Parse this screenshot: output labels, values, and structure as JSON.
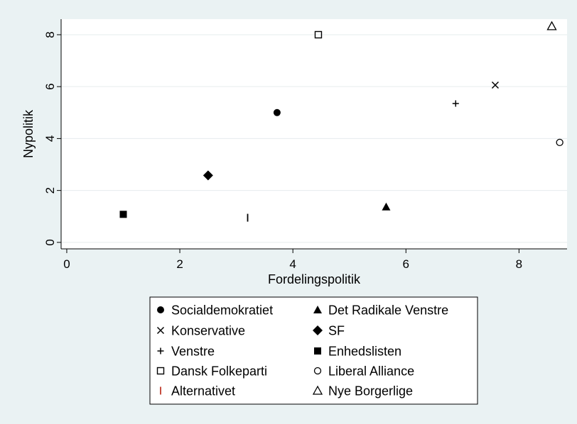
{
  "chart_data": {
    "type": "scatter",
    "xlabel": "Fordelingspolitik",
    "ylabel": "Nypolitik",
    "xlim": [
      -0.1,
      8.85
    ],
    "ylim": [
      -0.25,
      8.6
    ],
    "x_ticks": [
      0,
      2,
      4,
      6,
      8
    ],
    "y_ticks": [
      0,
      2,
      4,
      6,
      8
    ],
    "grid": "horizontal",
    "legend_position": "bottom-center",
    "background_color": "#eaf2f3",
    "plot_background_color": "#ffffff",
    "series": [
      {
        "name": "Socialdemokratiet",
        "marker": "filled-circle",
        "color": "#000000",
        "x": 3.72,
        "y": 5.0
      },
      {
        "name": "Det Radikale Venstre",
        "marker": "filled-triangle",
        "color": "#000000",
        "x": 5.65,
        "y": 1.37
      },
      {
        "name": "Konservative",
        "marker": "x",
        "color": "#000000",
        "x": 7.58,
        "y": 6.06
      },
      {
        "name": "SF",
        "marker": "filled-diamond",
        "color": "#000000",
        "x": 2.5,
        "y": 2.58
      },
      {
        "name": "Venstre",
        "marker": "plus",
        "color": "#000000",
        "x": 6.88,
        "y": 5.35
      },
      {
        "name": "Enhedslisten",
        "marker": "filled-square",
        "color": "#000000",
        "x": 1.0,
        "y": 1.08
      },
      {
        "name": "Dansk Folkeparti",
        "marker": "hollow-square",
        "color": "#000000",
        "x": 4.45,
        "y": 8.0
      },
      {
        "name": "Liberal Alliance",
        "marker": "hollow-circle",
        "color": "#000000",
        "x": 8.72,
        "y": 3.85
      },
      {
        "name": "Alternativet",
        "marker": "pipe",
        "color": "#000000",
        "legend_color": "#c0392b",
        "x": 3.2,
        "y": 0.95
      },
      {
        "name": "Nye Borgerlige",
        "marker": "hollow-triangle",
        "color": "#000000",
        "x": 8.58,
        "y": 8.33
      }
    ]
  }
}
